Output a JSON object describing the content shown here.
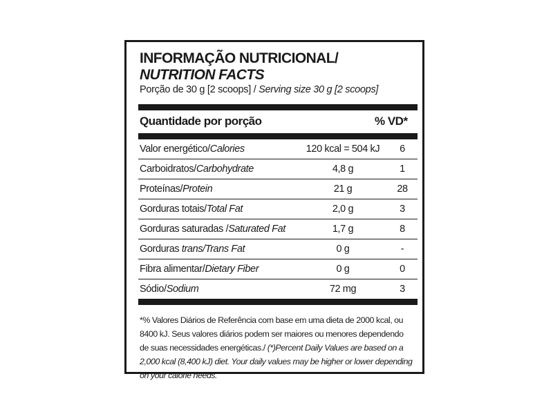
{
  "label": {
    "title_pt": "INFORMAÇÃO NUTRICIONAL/",
    "title_en": "NUTRITION FACTS",
    "serving_pt": "Porção de 30 g  [2 scoops] / ",
    "serving_en": "Serving size 30 g [2 scoops]",
    "header": {
      "quantity": "Quantidade por porção",
      "dv": "% VD*"
    },
    "rows": [
      {
        "name_pt": "Valor energético/",
        "name_en": "Calories",
        "amount": "120 kcal = 504 kJ",
        "dv": "6"
      },
      {
        "name_pt": "Carboidratos/",
        "name_en": "Carbohydrate",
        "amount": "4,8 g",
        "dv": "1"
      },
      {
        "name_pt": "Proteínas/",
        "name_en": "Protein",
        "amount": "21 g",
        "dv": "28"
      },
      {
        "name_pt": "Gorduras totais/",
        "name_en": "Total Fat",
        "amount": "2,0 g",
        "dv": "3"
      },
      {
        "name_pt": "Gorduras saturadas /",
        "name_en": "Saturated Fat",
        "amount": "1,7 g",
        "dv": "8"
      },
      {
        "name_pt": "Gorduras ",
        "name_en": "trans/Trans Fat",
        "amount": "0 g",
        "dv": "-"
      },
      {
        "name_pt": "Fibra alimentar/",
        "name_en": "Dietary Fiber",
        "amount": "0 g",
        "dv": "0"
      },
      {
        "name_pt": "Sódio/",
        "name_en": "Sodium",
        "amount": "72 mg",
        "dv": "3"
      }
    ],
    "footnote_pt": "*% Valores Diários de Referência com base em uma dieta de 2000 kcal, ou 8400 kJ. Seus valores diários podem ser maiores ou menores dependendo de suas necessidades energéticas./ ",
    "footnote_en": "(*)Percent Daily Values are based on a 2,000 kcal (8,400 kJ) diet. Your daily values may be higher or lower depending on your calorie needs."
  }
}
